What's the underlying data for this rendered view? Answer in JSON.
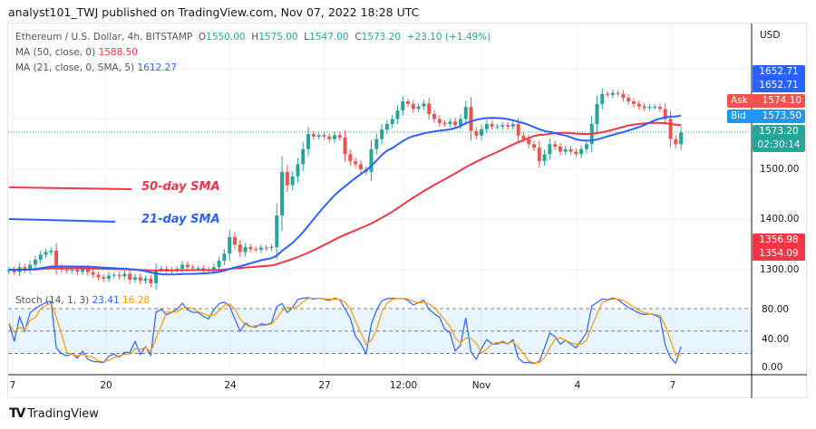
{
  "header": {
    "published": "analyst101_TWJ published on TradingView.com, Nov 07, 2022 18:28 UTC"
  },
  "legend": {
    "symbol": "Ethereum / U.S. Dollar, 4h, BITSTAMP",
    "o_label": "O",
    "o": "1550.00",
    "h_label": "H",
    "h": "1575.00",
    "l_label": "L",
    "l": "1547.00",
    "c_label": "C",
    "c": "1573.20",
    "change": "+23.10 (+1.49%)",
    "ma50_label": "MA (50, close, 0)",
    "ma50": "1588.50",
    "ma21_label": "MA (21, close, 0, SMA, 5)",
    "ma21": "1612.27",
    "stoch_label": "Stoch (14, 1, 3)",
    "stoch_k": "23.41",
    "stoch_d": "16.28"
  },
  "annotations": {
    "sma50": "50-day SMA",
    "sma21": "21-day SMA"
  },
  "price_axis": {
    "currency": "USD",
    "ticks": [
      "1500.00",
      "1400.00",
      "1300.00"
    ],
    "high1": "1652.71",
    "high2": "1652.71",
    "ask_label": "Ask",
    "ask": "1574.10",
    "bid_label": "Bid",
    "bid": "1573.50",
    "last": "1573.20",
    "countdown": "02:30:14",
    "low1": "1356.98",
    "low2": "1354.09"
  },
  "stoch_axis": {
    "ticks": [
      "80.00",
      "40.00",
      "0.00"
    ]
  },
  "time_axis": {
    "ticks": [
      "7",
      "20",
      "24",
      "27",
      "12:00",
      "Nov",
      "4",
      "7"
    ]
  },
  "brand": "TradingView",
  "colors": {
    "up": "#26a69a",
    "down": "#ef5350",
    "ma50": "#f23645",
    "ma21": "#2962ff",
    "stoch_k": "#2962ff",
    "stoch_d": "#ff9800",
    "ask": "#ef5350",
    "bid": "#2196f3",
    "high": "#2962ff",
    "low": "#f23645"
  },
  "chart_data": {
    "type": "candlestick",
    "interval": "4h",
    "start": "2022-10-17 00:00",
    "y_range": [
      1240,
      1750
    ],
    "stoch_range": [
      0,
      100
    ],
    "stoch_levels": [
      80,
      50,
      20
    ],
    "grid": true,
    "closes": [
      1300,
      1295,
      1305,
      1300,
      1310,
      1320,
      1330,
      1335,
      1338,
      1305,
      1300,
      1298,
      1300,
      1296,
      1302,
      1295,
      1290,
      1285,
      1282,
      1288,
      1290,
      1287,
      1292,
      1280,
      1285,
      1278,
      1282,
      1273,
      1300,
      1302,
      1298,
      1300,
      1302,
      1310,
      1305,
      1303,
      1303,
      1300,
      1298,
      1305,
      1318,
      1332,
      1365,
      1350,
      1335,
      1345,
      1341,
      1340,
      1344,
      1343,
      1345,
      1408,
      1495,
      1468,
      1486,
      1510,
      1540,
      1570,
      1565,
      1568,
      1565,
      1560,
      1568,
      1563,
      1530,
      1516,
      1510,
      1500,
      1495,
      1540,
      1560,
      1579,
      1590,
      1600,
      1617,
      1635,
      1630,
      1620,
      1625,
      1631,
      1610,
      1600,
      1592,
      1590,
      1595,
      1588,
      1600,
      1624,
      1576,
      1567,
      1580,
      1590,
      1585,
      1585,
      1588,
      1585,
      1590,
      1567,
      1560,
      1550,
      1543,
      1516,
      1530,
      1550,
      1545,
      1535,
      1540,
      1535,
      1530,
      1540,
      1550,
      1590,
      1630,
      1650,
      1648,
      1652,
      1650,
      1642,
      1635,
      1630,
      1625,
      1622,
      1624,
      1624,
      1620,
      1600,
      1560,
      1550,
      1573.2
    ]
  }
}
